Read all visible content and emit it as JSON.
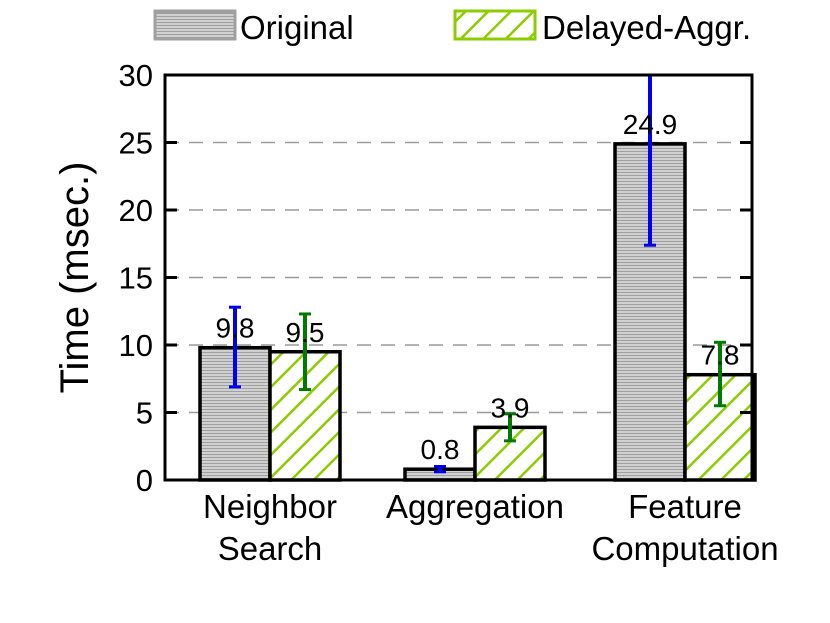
{
  "chart_data": {
    "type": "bar",
    "title": "",
    "xlabel": "",
    "ylabel": "Time (msec.)",
    "ylim": [
      0,
      30
    ],
    "yticks": [
      0,
      5,
      10,
      15,
      20,
      25,
      30
    ],
    "grid": "horizontal dashed",
    "legend_position": "top",
    "categories": [
      [
        "Neighbor",
        "Search"
      ],
      [
        "Aggregation"
      ],
      [
        "Feature",
        "Computation"
      ]
    ],
    "series": [
      {
        "name": "Original",
        "pattern": "horizontal-lines",
        "color": "#a0a0a0",
        "error_color": "#0000ee",
        "values": [
          9.8,
          0.8,
          24.9
        ],
        "labels": [
          "9.8",
          "0.8",
          "24.9"
        ],
        "error_low": [
          6.9,
          0.6,
          17.4
        ],
        "error_high": [
          12.8,
          1.0,
          30.0
        ]
      },
      {
        "name": "Delayed-Aggr.",
        "pattern": "diagonal-lines",
        "color": "#8ccc00",
        "error_color": "#007a00",
        "values": [
          9.5,
          3.9,
          7.8
        ],
        "labels": [
          "9.5",
          "3.9",
          "7.8"
        ],
        "error_low": [
          6.7,
          2.9,
          5.5
        ],
        "error_high": [
          12.3,
          4.9,
          10.2
        ]
      }
    ]
  }
}
